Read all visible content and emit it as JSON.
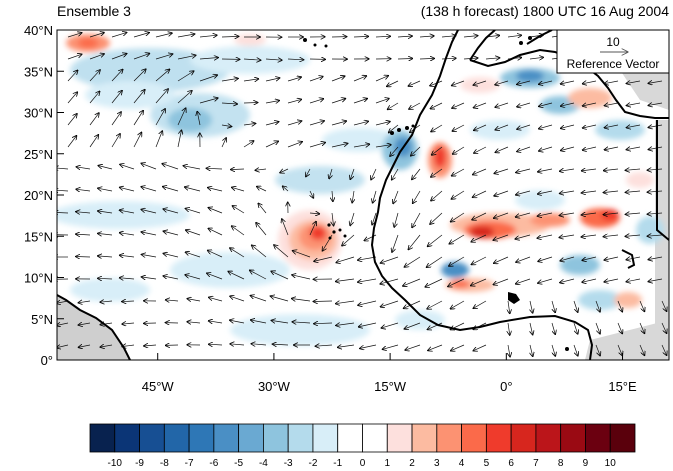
{
  "title_left": "Ensemble 3",
  "title_right": "(138 h forecast) 1800 UTC 16 Aug 2004",
  "reference_vector": {
    "magnitude": "10",
    "label": "Reference Vector"
  },
  "map": {
    "lon_range": [
      -58,
      21
    ],
    "lat_range": [
      0,
      40
    ],
    "lat_ticks": [
      {
        "value": 40,
        "label": "40°N"
      },
      {
        "value": 35,
        "label": "35°N"
      },
      {
        "value": 30,
        "label": "30°N"
      },
      {
        "value": 25,
        "label": "25°N"
      },
      {
        "value": 20,
        "label": "20°N"
      },
      {
        "value": 15,
        "label": "15°N"
      },
      {
        "value": 10,
        "label": "10°N"
      },
      {
        "value": 5,
        "label": "5°N"
      },
      {
        "value": 0,
        "label": "0°"
      }
    ],
    "lon_ticks": [
      {
        "value": -45,
        "label": "45°W"
      },
      {
        "value": -30,
        "label": "30°W"
      },
      {
        "value": -15,
        "label": "15°W"
      },
      {
        "value": 0,
        "label": "0°"
      },
      {
        "value": 15,
        "label": "15°E"
      }
    ]
  },
  "colorbar": {
    "labels": [
      "-10",
      "-9",
      "-8",
      "-7",
      "-6",
      "-5",
      "-4",
      "-3",
      "-2",
      "-1",
      "0",
      "1",
      "2",
      "3",
      "4",
      "5",
      "6",
      "7",
      "8",
      "9",
      "10"
    ],
    "colors": [
      "#08224f",
      "#0b3576",
      "#174f93",
      "#2266a8",
      "#2e77b6",
      "#4a8fc5",
      "#6aa9d2",
      "#8ec4de",
      "#b4dbec",
      "#d8eef8",
      "#ffffff",
      "#ffffff",
      "#fde0dd",
      "#fcbba1",
      "#fc9272",
      "#fb6a4a",
      "#ef3b2c",
      "#d7261e",
      "#bb151a",
      "#9a0a13",
      "#6b0010",
      "#5a000c"
    ]
  },
  "chart_data": {
    "type": "map",
    "title": "Ensemble 3",
    "subtitle": "(138 h forecast) 1800 UTC 16 Aug 2004",
    "xlim": [
      -58,
      21
    ],
    "ylim": [
      0,
      40
    ],
    "anomaly_features": [
      {
        "lon": -25,
        "lat": 16.5,
        "value": 7
      },
      {
        "lon": -10,
        "lat": 24,
        "value": 6
      },
      {
        "lon": -5,
        "lat": 16.5,
        "value": 7
      },
      {
        "lon": 10,
        "lat": 18,
        "value": 6
      },
      {
        "lon": -52,
        "lat": 38.5,
        "value": 4
      },
      {
        "lon": -15,
        "lat": 26,
        "value": -4
      },
      {
        "lon": 0,
        "lat": 35,
        "value": -4
      },
      {
        "lon": -8,
        "lat": 11.5,
        "value": -4
      },
      {
        "lon": -3,
        "lat": 9.5,
        "value": 4
      }
    ]
  }
}
